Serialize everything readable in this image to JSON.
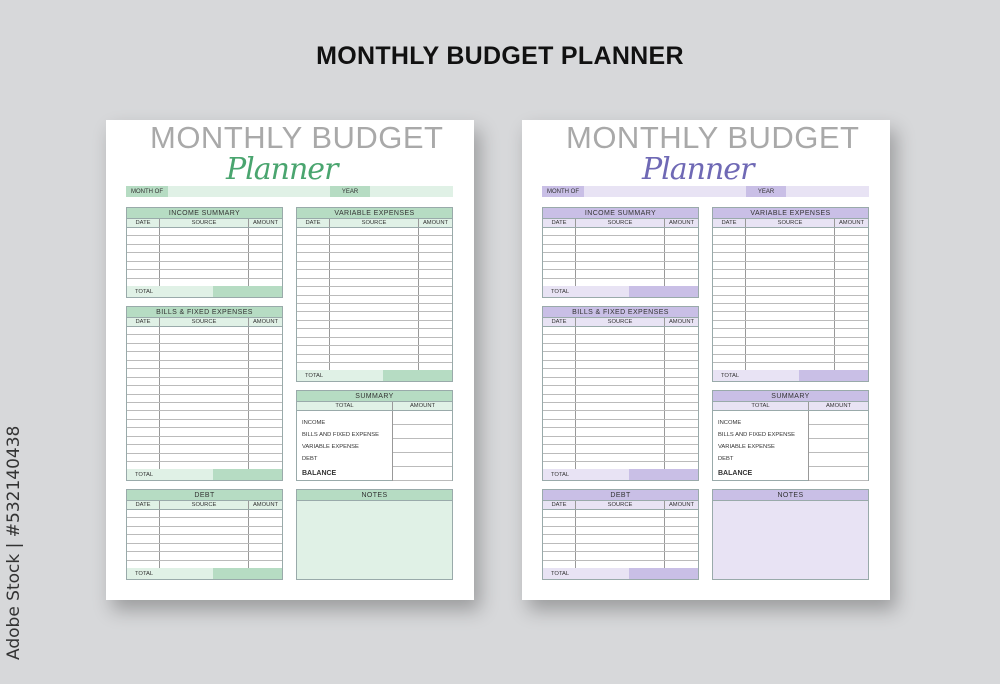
{
  "main_title": "MONTHLY BUDGET PLANNER",
  "stock_id": "Adobe Stock | #532140438",
  "labels": {
    "title": "MONTHLY BUDGET",
    "script": "Planner",
    "month_of": "MONTH OF",
    "year": "YEAR",
    "income": "INCOME SUMMARY",
    "variable": "VARIABLE EXPENSES",
    "bills": "BILLS & FIXED EXPENSES",
    "summary": "SUMMARY",
    "debt": "DEBT",
    "notes": "NOTES",
    "date": "DATE",
    "source": "SOURCE",
    "amount": "AMOUNT",
    "total": "TOTAL",
    "summary_rows": [
      "INCOME",
      "BILLS AND FIXED EXPENSE",
      "VARIABLE EXPENSE",
      "DEBT"
    ],
    "balance": "BALANCE"
  },
  "pages": [
    {
      "theme": "green",
      "header_color": "#b6dcc3",
      "light_color": "#e0f1e6",
      "script_color": "#4aa56f"
    },
    {
      "theme": "purple",
      "header_color": "#c9bfe6",
      "light_color": "#e8e3f4",
      "script_color": "#6f69b5"
    }
  ]
}
